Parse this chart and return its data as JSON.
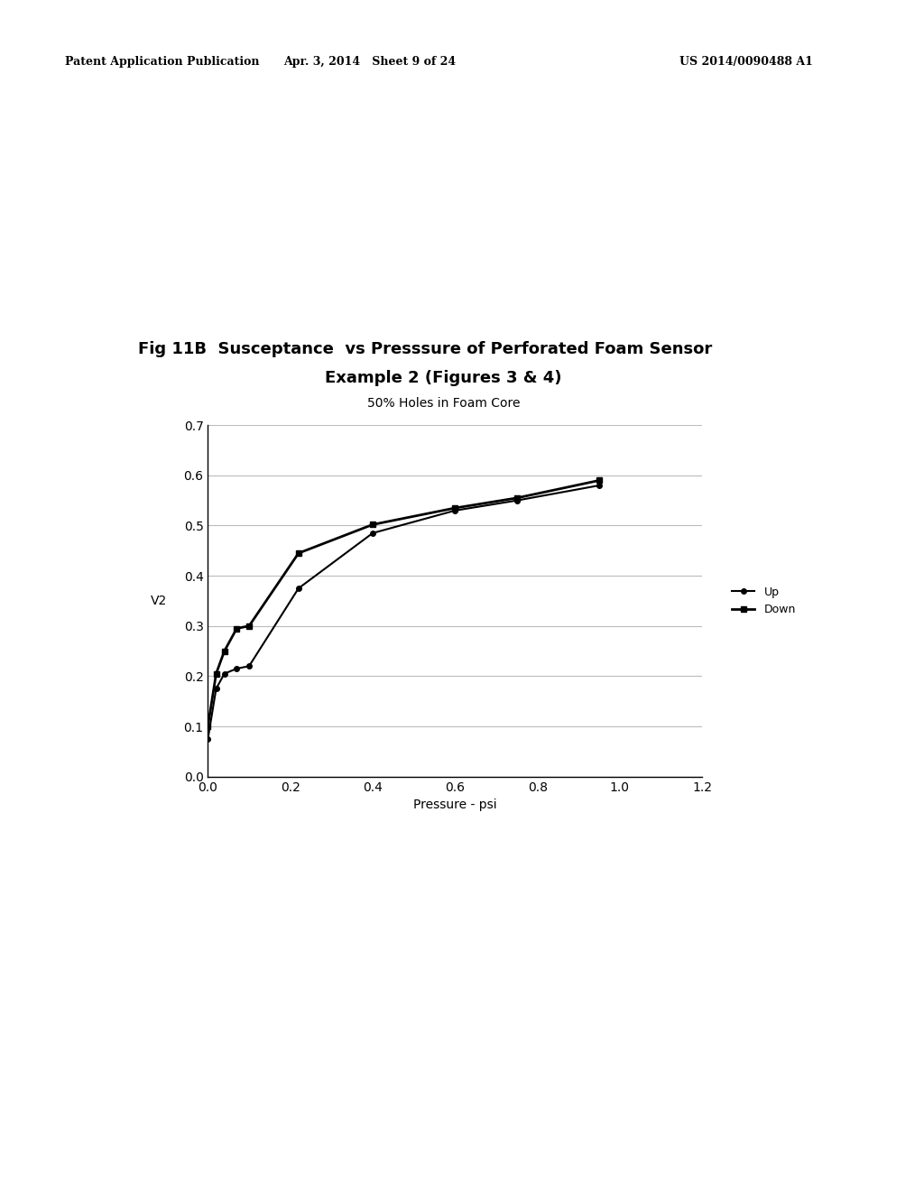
{
  "title_line1": "Fig 11B  Susceptance  vs Presssure of Perforated Foam Sensor",
  "title_line2": "Example 2 (Figures 3 & 4)",
  "subtitle": "50% Holes in Foam Core",
  "xlabel": "Pressure - psi",
  "ylabel": "V2",
  "xlim": [
    0,
    1.2
  ],
  "ylim": [
    0,
    0.7
  ],
  "xticks": [
    0,
    0.2,
    0.4,
    0.6,
    0.8,
    1.0,
    1.2
  ],
  "yticks": [
    0,
    0.1,
    0.2,
    0.3,
    0.4,
    0.5,
    0.6,
    0.7
  ],
  "up_x": [
    0.0,
    0.02,
    0.04,
    0.07,
    0.1,
    0.22,
    0.4,
    0.6,
    0.75,
    0.95
  ],
  "up_y": [
    0.075,
    0.175,
    0.205,
    0.215,
    0.22,
    0.375,
    0.485,
    0.53,
    0.55,
    0.58
  ],
  "down_x": [
    0.0,
    0.02,
    0.04,
    0.07,
    0.1,
    0.22,
    0.4,
    0.6,
    0.75,
    0.95
  ],
  "down_y": [
    0.1,
    0.205,
    0.25,
    0.295,
    0.3,
    0.445,
    0.502,
    0.535,
    0.555,
    0.59
  ],
  "line_color": "#000000",
  "background_color": "#ffffff",
  "legend_up": "Up",
  "legend_down": "Down",
  "header_left": "Patent Application Publication",
  "header_center": "Apr. 3, 2014   Sheet 9 of 24",
  "header_right": "US 2014/0090488 A1"
}
